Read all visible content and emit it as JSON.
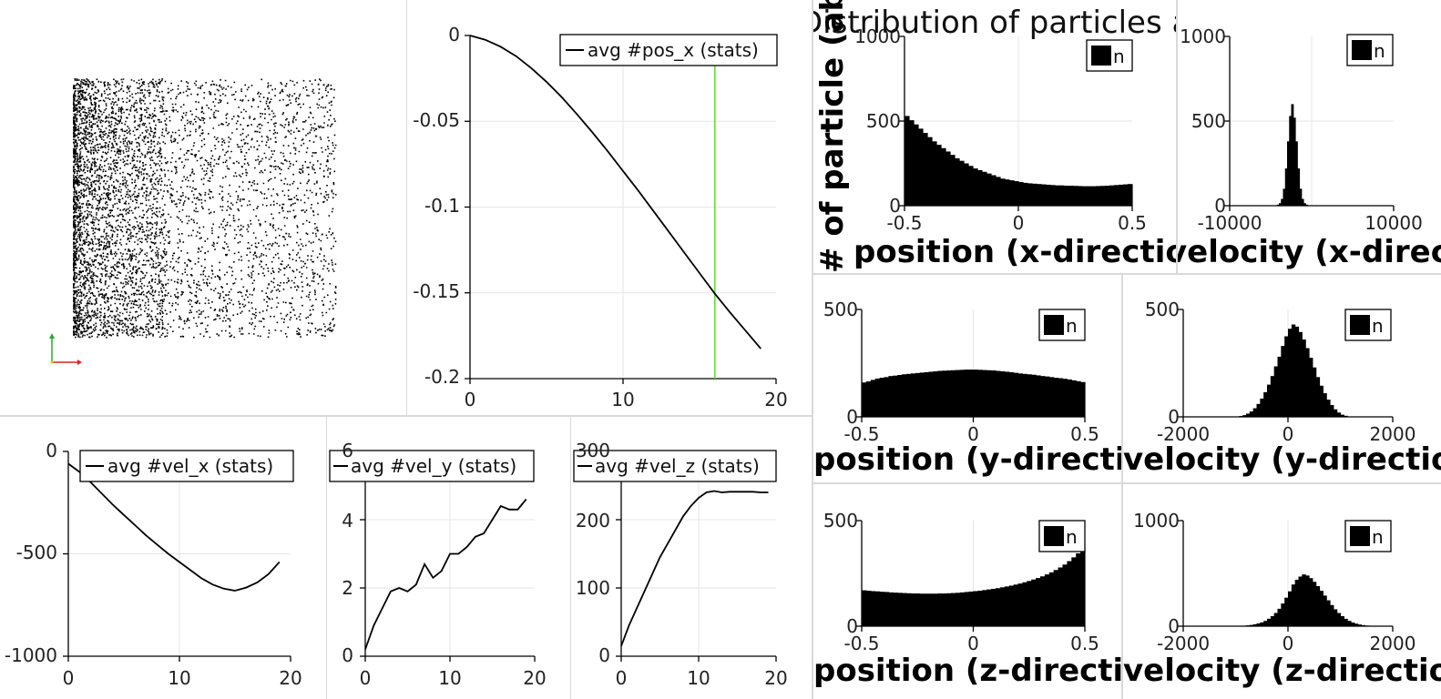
{
  "panels": {
    "pos_x": {
      "legend": "avg #pos_x (stats)",
      "xticks": [
        "0",
        "10",
        "20"
      ],
      "yticks": [
        "0",
        "-0.05",
        "-0.1",
        "-0.15",
        "-0.2"
      ],
      "marker_color": "#66dd33"
    },
    "vel_x": {
      "legend": "avg #vel_x (stats)",
      "xticks": [
        "0",
        "10",
        "20"
      ],
      "yticks": [
        "0",
        "-500",
        "-1000"
      ]
    },
    "vel_y": {
      "legend": "avg #vel_y (stats)",
      "xticks": [
        "0",
        "10",
        "20"
      ],
      "yticks": [
        "6",
        "4",
        "2",
        "0"
      ]
    },
    "vel_z": {
      "legend": "avg #vel_z (stats)",
      "xticks": [
        "0",
        "10",
        "20"
      ],
      "yticks": [
        "300",
        "200",
        "100",
        "0"
      ]
    }
  },
  "histograms": {
    "title": "Distribution of particles at time",
    "ylabel": "# of particle (absolute)",
    "legend": "n",
    "pos_x": {
      "xlabel": "position (x-direction)",
      "xticks": [
        "-0.5",
        "0",
        "0.5"
      ],
      "yticks": [
        "0",
        "500",
        "1000"
      ]
    },
    "vel_x": {
      "xlabel": "velocity (x-direction)",
      "xticks": [
        "-10000",
        "10000"
      ],
      "yticks": [
        "0",
        "500",
        "1000"
      ]
    },
    "pos_y": {
      "xlabel": "position (y-direction)",
      "xticks": [
        "-0.5",
        "0",
        "0.5"
      ],
      "yticks": [
        "0",
        "500"
      ]
    },
    "vel_y": {
      "xlabel": "velocity (y-direction)",
      "xticks": [
        "-2000",
        "0",
        "2000"
      ],
      "yticks": [
        "0",
        "500"
      ]
    },
    "pos_z": {
      "xlabel": "position (z-direction)",
      "xticks": [
        "-0.5",
        "0",
        "0.5"
      ],
      "yticks": [
        "0",
        "500"
      ]
    },
    "vel_z": {
      "xlabel": "velocity (z-direction)",
      "xticks": [
        "-2000",
        "0",
        "2000"
      ],
      "yticks": [
        "0",
        "1000"
      ]
    }
  },
  "chart_data": [
    {
      "type": "line",
      "id": "pos_x",
      "series": [
        {
          "name": "avg #pos_x (stats)",
          "x": [
            0,
            1,
            2,
            3,
            4,
            5,
            6,
            7,
            8,
            9,
            10,
            11,
            12,
            13,
            14,
            15,
            16,
            17,
            18,
            19
          ],
          "y": [
            0,
            -0.0025,
            -0.0065,
            -0.012,
            -0.019,
            -0.027,
            -0.036,
            -0.046,
            -0.0565,
            -0.0675,
            -0.079,
            -0.0905,
            -0.1025,
            -0.1145,
            -0.1265,
            -0.1385,
            -0.1505,
            -0.1615,
            -0.172,
            -0.1825
          ]
        }
      ],
      "xlim": [
        0,
        20
      ],
      "ylim": [
        -0.2,
        0
      ],
      "marker_x": 16,
      "legend_position": "top-right"
    },
    {
      "type": "line",
      "id": "vel_x",
      "series": [
        {
          "name": "avg #vel_x (stats)",
          "x": [
            0,
            1,
            2,
            3,
            4,
            5,
            6,
            7,
            8,
            9,
            10,
            11,
            12,
            13,
            14,
            15,
            16,
            17,
            18,
            19
          ],
          "y": [
            -60,
            -100,
            -150,
            -205,
            -260,
            -310,
            -360,
            -410,
            -455,
            -500,
            -540,
            -580,
            -620,
            -650,
            -670,
            -680,
            -665,
            -640,
            -600,
            -540
          ]
        }
      ],
      "xlim": [
        0,
        20
      ],
      "ylim": [
        -1000,
        0
      ],
      "legend_position": "top-right"
    },
    {
      "type": "line",
      "id": "vel_y",
      "series": [
        {
          "name": "avg #vel_y (stats)",
          "x": [
            0,
            1,
            2,
            3,
            4,
            5,
            6,
            7,
            8,
            9,
            10,
            11,
            12,
            13,
            14,
            15,
            16,
            17,
            18,
            19
          ],
          "y": [
            0.2,
            0.9,
            1.4,
            1.9,
            2.0,
            1.9,
            2.1,
            2.7,
            2.3,
            2.5,
            3.0,
            3.0,
            3.2,
            3.5,
            3.6,
            4.0,
            4.4,
            4.3,
            4.3,
            4.6
          ]
        }
      ],
      "xlim": [
        0,
        20
      ],
      "ylim": [
        0,
        6
      ],
      "legend_position": "top-right"
    },
    {
      "type": "line",
      "id": "vel_z",
      "series": [
        {
          "name": "avg #vel_z (stats)",
          "x": [
            0,
            1,
            2,
            3,
            4,
            5,
            6,
            7,
            8,
            9,
            10,
            11,
            12,
            13,
            14,
            15,
            16,
            17,
            18,
            19
          ],
          "y": [
            15,
            45,
            70,
            95,
            120,
            145,
            165,
            185,
            205,
            220,
            232,
            240,
            242,
            240,
            241,
            241,
            241,
            241,
            240,
            240
          ]
        }
      ],
      "xlim": [
        0,
        20
      ],
      "ylim": [
        0,
        300
      ],
      "legend_position": "top-right"
    },
    {
      "type": "bar",
      "id": "hist_pos_x",
      "xlim": [
        -0.5,
        0.5
      ],
      "ylim": [
        0,
        1000
      ],
      "values": [
        530,
        505,
        480,
        455,
        430,
        405,
        380,
        360,
        340,
        320,
        300,
        280,
        265,
        250,
        235,
        220,
        210,
        200,
        190,
        180,
        170,
        160,
        155,
        150,
        145,
        140,
        135,
        132,
        130,
        128,
        126,
        124,
        122,
        120,
        120,
        118,
        118,
        117,
        116,
        115,
        115,
        115,
        116,
        117,
        118,
        120,
        122,
        124,
        126,
        128
      ]
    },
    {
      "type": "bar",
      "id": "hist_vel_x",
      "xlim": [
        -10000,
        10000
      ],
      "ylim": [
        0,
        1000
      ],
      "values": [
        0,
        0,
        0,
        0,
        0,
        0,
        0,
        0,
        0,
        0,
        0,
        0,
        0,
        0,
        0,
        0,
        0,
        0,
        0,
        0,
        0,
        0,
        2,
        6,
        15,
        40,
        100,
        220,
        380,
        530,
        600,
        520,
        380,
        220,
        100,
        40,
        15,
        6,
        2,
        0,
        0,
        0,
        0,
        0,
        0,
        0,
        0,
        0,
        0,
        0,
        0,
        0,
        0,
        0,
        0,
        0,
        0,
        0,
        0,
        0,
        0,
        0,
        0,
        0,
        0,
        0,
        0,
        0,
        0,
        0,
        0,
        0,
        0,
        0,
        0,
        0,
        0,
        0,
        0,
        0
      ]
    },
    {
      "type": "bar",
      "id": "hist_pos_y",
      "xlim": [
        -0.5,
        0.5
      ],
      "ylim": [
        0,
        500
      ],
      "values": [
        160,
        165,
        172,
        178,
        182,
        185,
        190,
        192,
        195,
        198,
        200,
        202,
        204,
        206,
        208,
        210,
        212,
        214,
        215,
        216,
        217,
        218,
        219,
        220,
        220,
        220,
        219,
        218,
        217,
        216,
        214,
        212,
        210,
        208,
        205,
        202,
        200,
        198,
        196,
        193,
        190,
        188,
        185,
        182,
        180,
        177,
        174,
        170,
        166,
        162
      ]
    },
    {
      "type": "bar",
      "id": "hist_vel_y",
      "xlim": [
        -2000,
        2000
      ],
      "ylim": [
        0,
        500
      ],
      "values": [
        0,
        0,
        0,
        0,
        0,
        0,
        0,
        0,
        0,
        0,
        0,
        0,
        0,
        0,
        1,
        2,
        4,
        8,
        15,
        25,
        40,
        60,
        85,
        115,
        150,
        190,
        235,
        280,
        330,
        375,
        410,
        430,
        420,
        395,
        360,
        320,
        275,
        230,
        185,
        145,
        110,
        80,
        55,
        35,
        20,
        10,
        5,
        2,
        1,
        0,
        0,
        0,
        0,
        0,
        0,
        0,
        0,
        0,
        0,
        0
      ]
    },
    {
      "type": "bar",
      "id": "hist_pos_z",
      "xlim": [
        -0.5,
        0.5
      ],
      "ylim": [
        0,
        500
      ],
      "values": [
        170,
        168,
        166,
        165,
        163,
        162,
        160,
        159,
        158,
        157,
        156,
        155,
        155,
        154,
        154,
        154,
        154,
        155,
        155,
        156,
        157,
        158,
        160,
        162,
        164,
        166,
        168,
        171,
        174,
        177,
        180,
        184,
        188,
        192,
        197,
        202,
        208,
        214,
        221,
        228,
        236,
        245,
        255,
        266,
        278,
        292,
        308,
        326,
        345,
        370
      ]
    },
    {
      "type": "bar",
      "id": "hist_vel_z",
      "xlim": [
        -2000,
        2000
      ],
      "ylim": [
        0,
        1000
      ],
      "values": [
        0,
        0,
        0,
        0,
        0,
        0,
        0,
        0,
        0,
        0,
        0,
        0,
        0,
        0,
        1,
        2,
        3,
        5,
        8,
        12,
        18,
        26,
        36,
        50,
        70,
        95,
        125,
        165,
        215,
        270,
        330,
        395,
        440,
        470,
        490,
        480,
        455,
        420,
        380,
        335,
        290,
        245,
        200,
        160,
        125,
        95,
        70,
        50,
        35,
        24,
        16,
        10,
        6,
        4,
        2,
        1,
        0,
        0,
        0,
        0
      ]
    }
  ]
}
